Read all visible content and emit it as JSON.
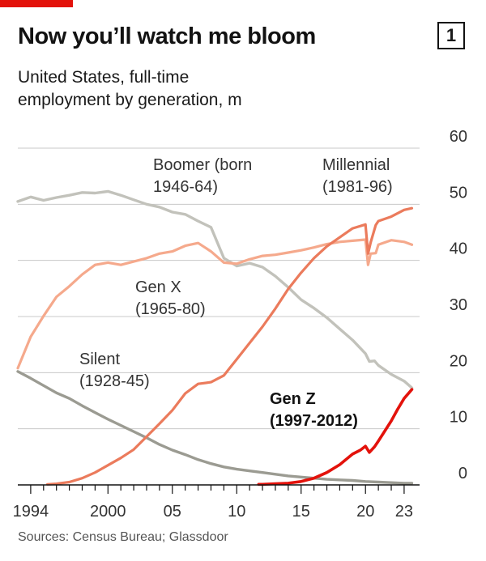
{
  "header": {
    "title": "Now you’ll watch me bloom",
    "chart_number": "1",
    "subtitle": "United States, full-time\nemployment by generation, m"
  },
  "footer": {
    "source": "Sources: Census Bureau; Glassdoor"
  },
  "colors": {
    "boomer": "#c2c2bb",
    "silent": "#9b9b92",
    "genx": "#f5a98c",
    "millennial": "#eb7b5c",
    "genz": "#e3120b",
    "accent": "#e3120b",
    "grid": "#c8c8c8"
  },
  "chart_data": {
    "type": "line",
    "title": "Now you’ll watch me bloom",
    "subtitle": "United States, full-time employment by generation, m",
    "xlim": [
      1993,
      2024.2
    ],
    "ylim": [
      0,
      60
    ],
    "y_ticks": [
      0,
      10,
      20,
      30,
      40,
      50,
      60
    ],
    "y_tick_labels": [
      "0",
      "10",
      "20",
      "30",
      "40",
      "50",
      "60"
    ],
    "x_ticks": [
      1994,
      2000,
      2005,
      2010,
      2015,
      2020,
      2023
    ],
    "x_tick_labels": [
      "1994",
      "2000",
      "05",
      "10",
      "15",
      "20",
      "23"
    ],
    "y_axis_position": "right",
    "grid": true,
    "series": [
      {
        "name": "Boomer (born 1946-64)",
        "label_lines": [
          "Boomer (born",
          "1946-64)"
        ],
        "color_key": "boomer",
        "x": [
          1993,
          1994,
          1995,
          1996,
          1997,
          1998,
          1999,
          2000,
          2001,
          2002,
          2003,
          2004,
          2005,
          2006,
          2007,
          2008,
          2009,
          2010,
          2011,
          2012,
          2013,
          2014,
          2015,
          2016,
          2017,
          2018,
          2019,
          2020,
          2020.3,
          2020.7,
          2021,
          2022,
          2023,
          2023.6
        ],
        "values": [
          50.5,
          51.3,
          50.7,
          51.2,
          51.6,
          52.1,
          52.0,
          52.3,
          51.6,
          50.8,
          50.0,
          49.5,
          48.6,
          48.2,
          47.0,
          45.9,
          40.4,
          39.0,
          39.5,
          38.8,
          37.2,
          35.2,
          33.0,
          31.5,
          29.8,
          27.8,
          25.8,
          23.4,
          22.0,
          22.1,
          21.3,
          19.7,
          18.5,
          17.3
        ]
      },
      {
        "name": "Millennial (1981-96)",
        "label_lines": [
          "Millennial",
          "(1981-96)"
        ],
        "color_key": "millennial",
        "x": [
          1995.3,
          1996,
          1997,
          1998,
          1999,
          2000,
          2001,
          2002,
          2003,
          2004,
          2005,
          2006,
          2007,
          2008,
          2009,
          2010,
          2011,
          2012,
          2013,
          2014,
          2015,
          2016,
          2017,
          2018,
          2019,
          2020,
          2020.2,
          2020.4,
          2020.8,
          2021,
          2022,
          2023,
          2023.6
        ],
        "values": [
          0.1,
          0.2,
          0.5,
          1.2,
          2.2,
          3.5,
          4.8,
          6.3,
          8.6,
          10.9,
          13.3,
          16.3,
          18.0,
          18.3,
          19.5,
          22.4,
          25.3,
          28.2,
          31.4,
          34.9,
          37.8,
          40.4,
          42.5,
          44.1,
          45.7,
          46.4,
          41.2,
          43.2,
          46.3,
          47.0,
          47.8,
          49.0,
          49.3
        ]
      },
      {
        "name": "Gen X (1965-80)",
        "label_lines": [
          "Gen X",
          "(1965-80)"
        ],
        "color_key": "genx",
        "x": [
          1993,
          1994,
          1995,
          1996,
          1997,
          1998,
          1999,
          2000,
          2001,
          2002,
          2003,
          2004,
          2005,
          2006,
          2007,
          2008,
          2009,
          2010,
          2011,
          2012,
          2013,
          2014,
          2015,
          2016,
          2017,
          2018,
          2019,
          2020,
          2020.2,
          2020.4,
          2020.8,
          2021,
          2022,
          2023,
          2023.6
        ],
        "values": [
          20.8,
          26.4,
          30.1,
          33.5,
          35.4,
          37.5,
          39.2,
          39.6,
          39.2,
          39.8,
          40.4,
          41.2,
          41.6,
          42.6,
          43.1,
          41.6,
          39.6,
          39.4,
          40.2,
          40.8,
          41.0,
          41.4,
          41.8,
          42.3,
          42.9,
          43.3,
          43.5,
          43.7,
          39.2,
          41.2,
          41.3,
          42.8,
          43.6,
          43.3,
          42.8
        ]
      },
      {
        "name": "Silent (1928-45)",
        "label_lines": [
          "Silent",
          "(1928-45)"
        ],
        "color_key": "silent",
        "x": [
          1993,
          1994,
          1995,
          1996,
          1997,
          1998,
          1999,
          2000,
          2001,
          2002,
          2003,
          2004,
          2005,
          2006,
          2007,
          2008,
          2009,
          2010,
          2011,
          2012,
          2013,
          2014,
          2015,
          2016,
          2017,
          2018,
          2019,
          2020,
          2021,
          2022,
          2023,
          2023.6
        ],
        "values": [
          20.2,
          19.0,
          17.7,
          16.4,
          15.4,
          14.1,
          12.9,
          11.7,
          10.6,
          9.5,
          8.4,
          7.2,
          6.2,
          5.4,
          4.5,
          3.8,
          3.2,
          2.8,
          2.5,
          2.2,
          1.9,
          1.6,
          1.4,
          1.2,
          1.0,
          0.9,
          0.8,
          0.6,
          0.5,
          0.4,
          0.3,
          0.3
        ]
      },
      {
        "name": "Gen Z (1997-2012)",
        "label_lines": [
          "Gen Z",
          "(1997-2012)"
        ],
        "color_key": "genz",
        "x": [
          2011.7,
          2012,
          2013,
          2014,
          2015,
          2016,
          2017,
          2018,
          2019,
          2019.6,
          2020,
          2020.3,
          2020.7,
          2021,
          2021.5,
          2022,
          2022.5,
          2023,
          2023.6
        ],
        "values": [
          0.1,
          0.1,
          0.2,
          0.3,
          0.6,
          1.2,
          2.2,
          3.6,
          5.5,
          6.2,
          6.9,
          5.8,
          6.8,
          7.8,
          9.6,
          11.4,
          13.5,
          15.4,
          17.0
        ]
      }
    ]
  }
}
